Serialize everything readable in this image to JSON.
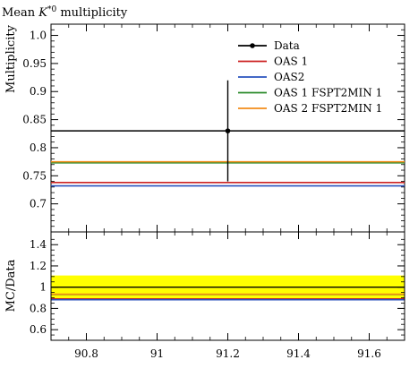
{
  "chart_data": [
    {
      "type": "line",
      "title": "Mean K*0 multiplicity",
      "title_parts": [
        "Mean ",
        "K",
        "*0",
        " multiplicity"
      ],
      "xlabel": "",
      "ylabel": "Multiplicity",
      "xlim": [
        90.7,
        91.7
      ],
      "ylim": [
        0.65,
        1.02
      ],
      "yticks": [
        "1.0",
        "0.95",
        "0.9",
        "0.85",
        "0.8",
        "0.75",
        "0.7"
      ],
      "ytick_values": [
        1.0,
        0.95,
        0.9,
        0.85,
        0.8,
        0.75,
        0.7
      ],
      "grid": false,
      "legend_position": "top-right",
      "data": {
        "name": "Data",
        "color": "#000000",
        "x": 91.2,
        "y": 0.83,
        "yerr_low": 0.74,
        "yerr_high": 0.92,
        "x_band": [
          90.7,
          91.7
        ]
      },
      "series": [
        {
          "name": "OAS 1",
          "color": "#cc2222",
          "value": 0.738
        },
        {
          "name": "OAS2",
          "color": "#2a52be",
          "value": 0.732
        },
        {
          "name": "OAS 1 FSPT2MIN 1",
          "color": "#2a8a2a",
          "value": 0.773
        },
        {
          "name": "OAS 2 FSPT2MIN 1",
          "color": "#f28c18",
          "value": 0.775
        }
      ]
    },
    {
      "type": "line",
      "ylabel": "MC/Data",
      "xlim": [
        90.7,
        91.7
      ],
      "ylim": [
        0.5,
        1.52
      ],
      "yticks": [
        "1.4",
        "1.2",
        "1",
        "0.8",
        "0.6"
      ],
      "ytick_values": [
        1.4,
        1.2,
        1.0,
        0.8,
        0.6
      ],
      "xticks": [
        "90.8",
        "91",
        "91.2",
        "91.4",
        "91.6"
      ],
      "xtick_values": [
        90.8,
        91.0,
        91.2,
        91.4,
        91.6
      ],
      "band": {
        "low": 0.89,
        "high": 1.11,
        "color": "#ffff00"
      },
      "reference": 1.0,
      "series": [
        {
          "name": "OAS 1",
          "color": "#cc2222",
          "value": 0.889
        },
        {
          "name": "OAS2",
          "color": "#2a52be",
          "value": 0.882
        },
        {
          "name": "OAS 1 FSPT2MIN 1",
          "color": "#2a8a2a",
          "value": 0.931
        },
        {
          "name": "OAS 2 FSPT2MIN 1",
          "color": "#f28c18",
          "value": 0.934
        }
      ]
    }
  ]
}
